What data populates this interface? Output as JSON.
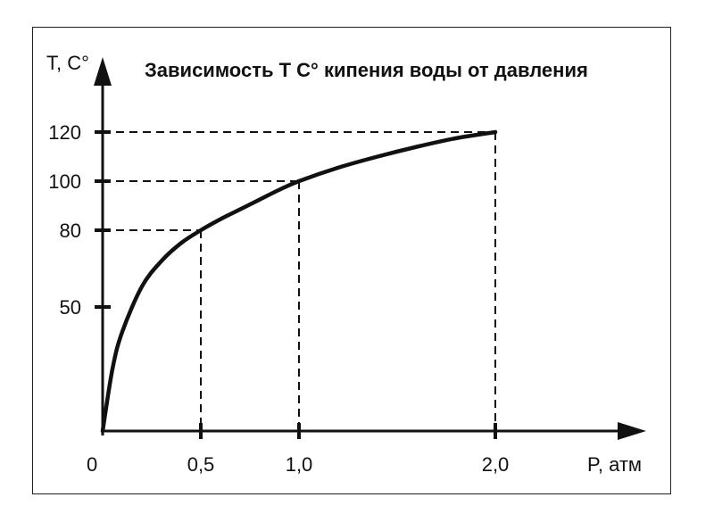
{
  "chart_data": {
    "type": "line",
    "title": "Зависимость Т С° кипения воды от давления",
    "xlabel": "P, атм",
    "ylabel": "Т, С°",
    "xlim": [
      0,
      2.7
    ],
    "ylim": [
      0,
      140
    ],
    "x_ticks": [
      0.5,
      1.0,
      2.0
    ],
    "x_tick_labels": [
      "0,5",
      "1,0",
      "2,0"
    ],
    "y_ticks": [
      50,
      80,
      100,
      120
    ],
    "y_tick_labels": [
      "50",
      "80",
      "100",
      "120"
    ],
    "origin_label": "0",
    "series": [
      {
        "x": [
          0,
          0.05,
          0.1,
          0.2,
          0.3,
          0.4,
          0.5,
          0.6,
          0.7,
          0.8,
          0.9,
          1.0,
          1.2,
          1.4,
          1.6,
          1.8,
          2.0
        ],
        "y": [
          0,
          25,
          40,
          58,
          68,
          75,
          80,
          84.5,
          88.5,
          92.5,
          96.5,
          100,
          105.5,
          110,
          114,
          117.5,
          120
        ]
      }
    ],
    "reference_points": [
      {
        "x": 0.5,
        "y": 80
      },
      {
        "x": 1.0,
        "y": 100
      },
      {
        "x": 2.0,
        "y": 120
      }
    ],
    "grid": false,
    "colors": {
      "line": "#111111",
      "dashes": "#111111",
      "frame": "#222222"
    }
  }
}
